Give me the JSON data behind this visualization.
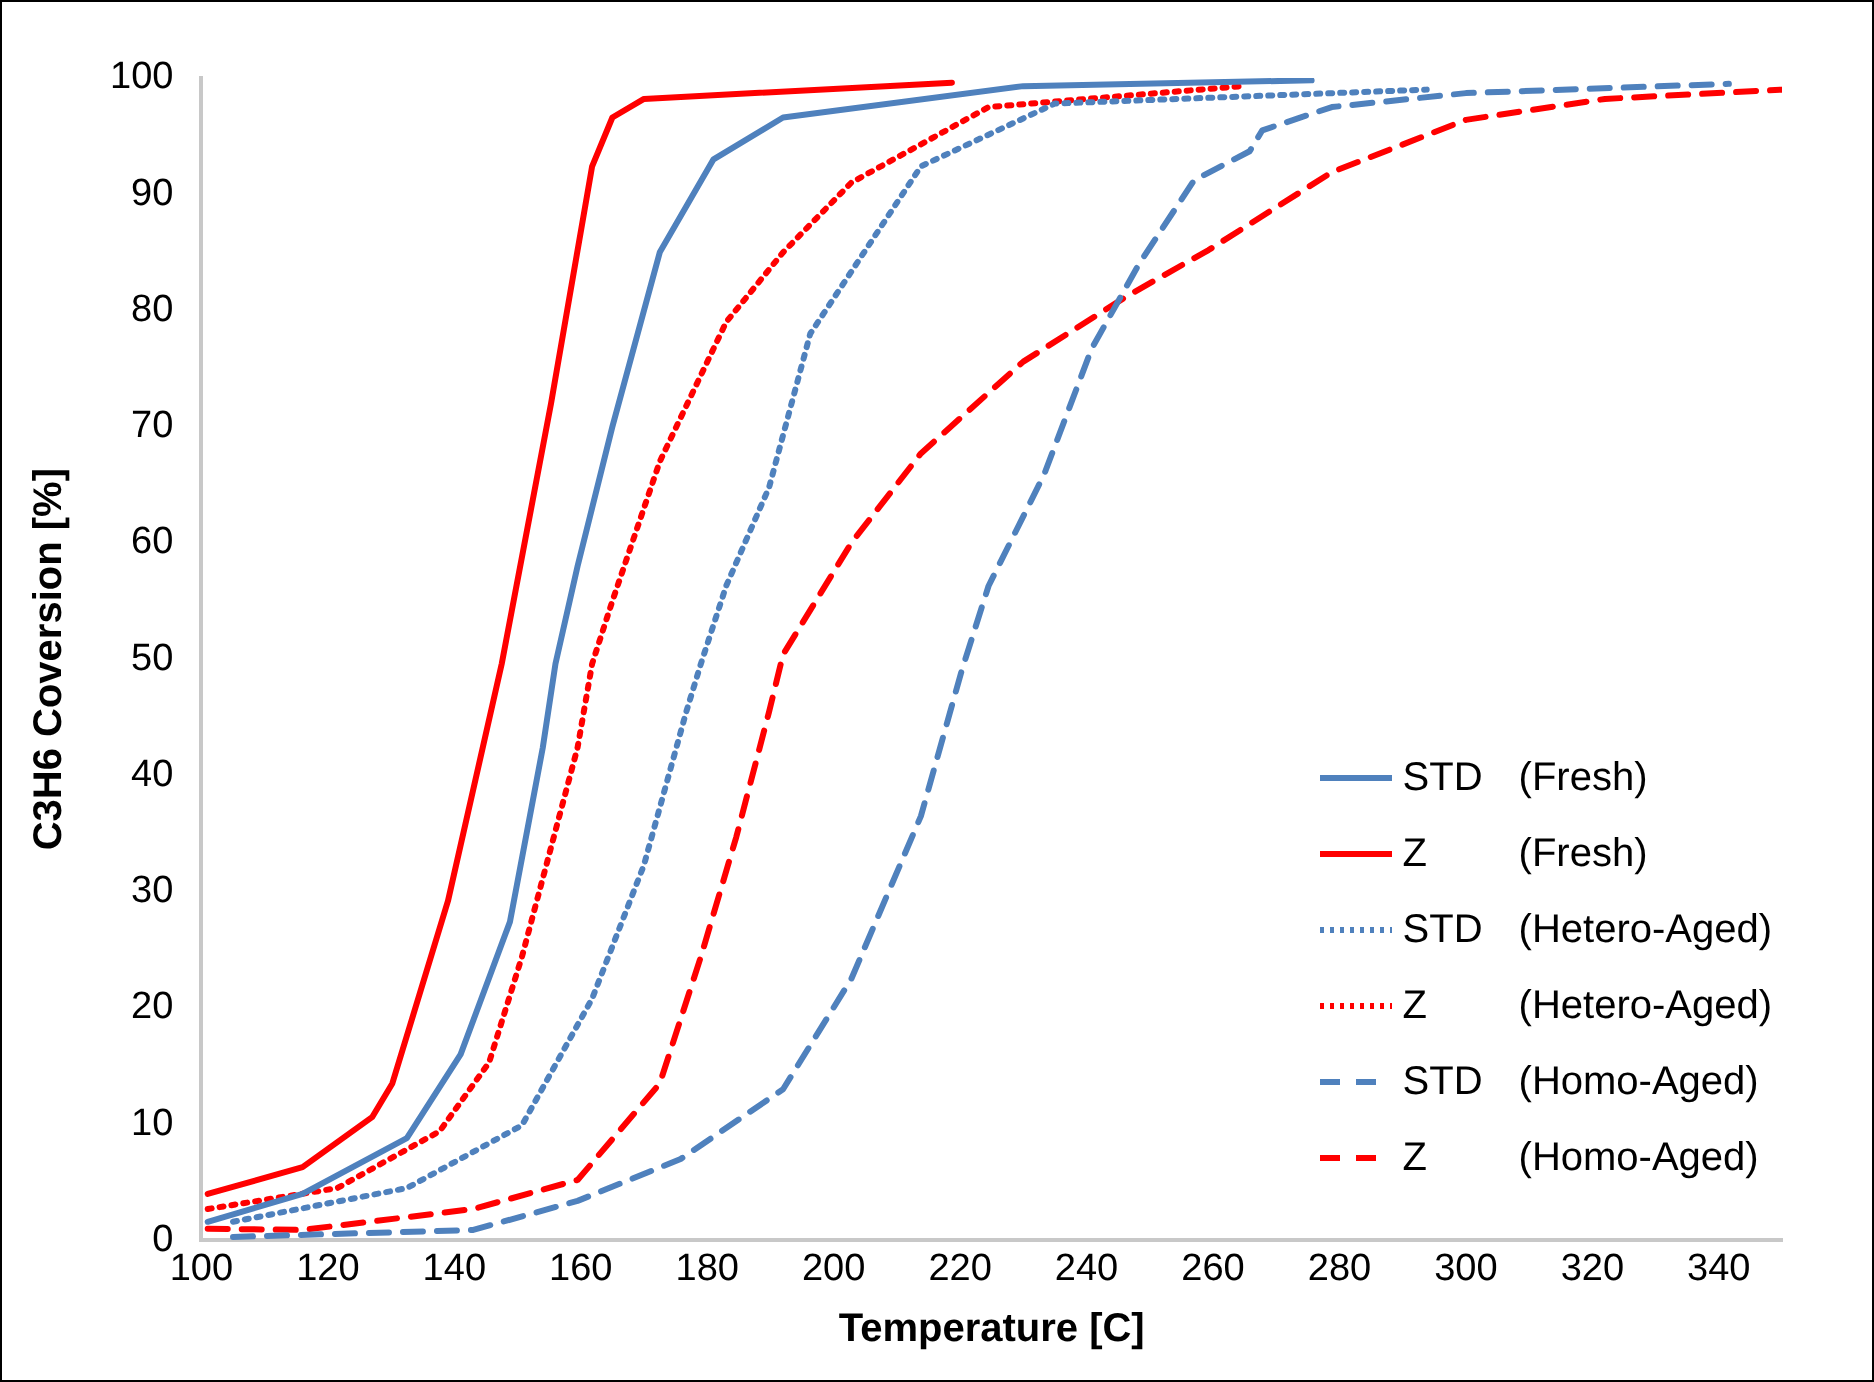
{
  "chart_data": {
    "type": "line",
    "xlabel": "Temperature [C]",
    "ylabel": "C3H6 Coversion [%]",
    "xlim": [
      100,
      350
    ],
    "xticks": [
      100,
      120,
      140,
      160,
      180,
      200,
      220,
      240,
      260,
      280,
      300,
      320,
      340
    ],
    "ylim": [
      0,
      100
    ],
    "yticks": [
      0,
      10,
      20,
      30,
      40,
      50,
      60,
      70,
      80,
      90,
      100
    ],
    "legend": "bottom right",
    "grid": false,
    "marker": "none",
    "series": [
      {
        "name": "STD (Fresh)",
        "color": "#4f81bd",
        "line_style": "solid",
        "x": [
          101,
          116,
          132.5,
          141,
          148.8,
          154,
          156,
          159.5,
          165,
          172.5,
          181,
          192,
          230,
          275.6
        ],
        "values": [
          1.6,
          4,
          8.8,
          16,
          27.4,
          42.4,
          49.6,
          58,
          70,
          85,
          93,
          96.6,
          99.3,
          99.8
        ]
      },
      {
        "name": "Z (Fresh)",
        "color": "#ff0000",
        "line_style": "solid",
        "x": [
          101,
          116,
          127,
          130.2,
          139,
          147.5,
          155.3,
          161.8,
          165,
          170,
          218.7
        ],
        "values": [
          4,
          6.3,
          10.6,
          13.5,
          29.2,
          49.6,
          72,
          92.4,
          96.6,
          98.2,
          99.6
        ]
      },
      {
        "name": "STD (Hetero-Aged)",
        "color": "#4f81bd",
        "line_style": "dotted",
        "x": [
          105,
          132.5,
          150.7,
          161.8,
          170,
          176.7,
          179,
          183,
          189.8,
          196.3,
          213.8,
          235,
          293.8
        ],
        "values": [
          1.6,
          4.5,
          9.9,
          20.8,
          32.3,
          45.5,
          49.6,
          56.3,
          64.8,
          78,
          92.4,
          97.8,
          99
        ]
      },
      {
        "name": "Z (Hetero-Aged)",
        "color": "#ff0000",
        "line_style": "dotted",
        "x": [
          101,
          121.5,
          137.7,
          145.5,
          150.7,
          159.5,
          161.8,
          165,
          172.5,
          183,
          192,
          202.8,
          224.5,
          264.6
        ],
        "values": [
          2.7,
          4.5,
          9.4,
          15.3,
          24.4,
          42.4,
          49.6,
          55,
          67,
          79,
          85,
          91,
          97.5,
          99.3
        ]
      },
      {
        "name": "STD (Homo-Aged)",
        "color": "#4f81bd",
        "line_style": "dashed",
        "x": [
          105,
          143,
          159.5,
          175.8,
          192,
          202.8,
          213.8,
          220.3,
          224.5,
          233.3,
          240.8,
          248.3,
          257,
          265.8,
          267.8,
          278.8,
          300,
          341.6
        ],
        "values": [
          0.3,
          0.9,
          3.4,
          7,
          13,
          22.5,
          36.5,
          49.1,
          56.3,
          65.9,
          76.7,
          84,
          91.2,
          93.7,
          95.5,
          97.5,
          98.7,
          99.5
        ]
      },
      {
        "name": "Z (Homo-Aged)",
        "color": "#ff0000",
        "line_style": "dashed",
        "x": [
          101,
          116,
          143,
          159.5,
          172.5,
          179,
          184.6,
          189.8,
          192,
          202.8,
          213.8,
          230,
          246.3,
          259.3,
          278.8,
          300,
          322,
          350
        ],
        "values": [
          1,
          0.9,
          2.7,
          5.2,
          13.5,
          24.4,
          34.7,
          45.5,
          50.4,
          60,
          67.7,
          75.6,
          81.2,
          85.2,
          91.9,
          96.4,
          98.2,
          99
        ]
      }
    ]
  }
}
